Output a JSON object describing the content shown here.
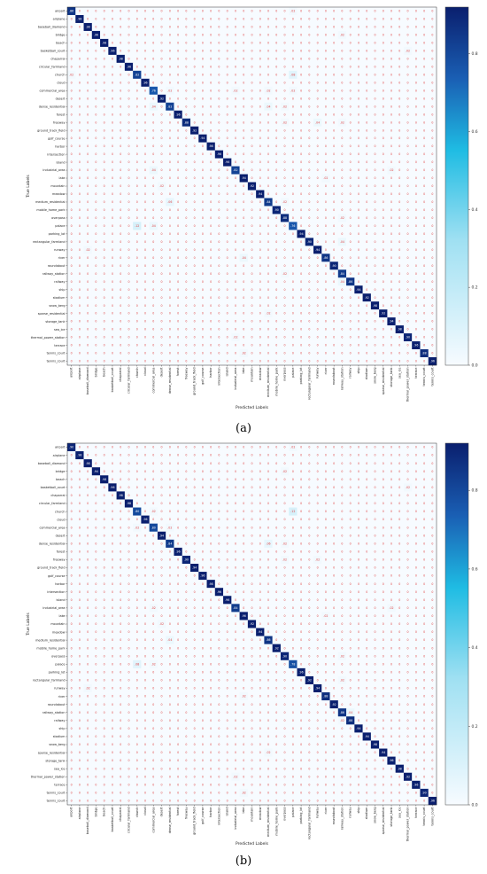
{
  "colors": {
    "low": "#f7fbff",
    "mid": "#1fbce3",
    "high": "#0a1f6e",
    "offdiag_text": "#e04040",
    "diag_text": "#ffffff"
  },
  "chart_data": [
    {
      "type": "heatmap",
      "caption": "(a)",
      "xlabel": "Predicted Labels",
      "ylabel": "True Labels",
      "labels": [
        "airport",
        "airplane",
        "baseball_diamond",
        "bridge",
        "beach",
        "basketball_court",
        "chaparral",
        "circular_farmland",
        "church",
        "cloud",
        "commercial_area",
        "desert",
        "dense_residential",
        "forest",
        "freeway",
        "ground_track_field",
        "golf_course",
        "harbor",
        "intersection",
        "island",
        "industrial_area",
        "lake",
        "mountain",
        "meadow",
        "medium_residential",
        "mobile_home_park",
        "overpass",
        "palace",
        "parking_lot",
        "rectangular_farmland",
        "runway",
        "river",
        "roundabout",
        "railway_station",
        "railway",
        "ship",
        "stadium",
        "snow_berg",
        "sparse_residential",
        "storage_tank",
        "sea_ice",
        "thermal_power_station",
        "terrace",
        "tennis_court",
        "tennis_court"
      ],
      "diagonal": [
        0.86,
        0.98,
        0.98,
        0.96,
        0.98,
        0.96,
        0.98,
        0.96,
        0.82,
        0.96,
        0.76,
        0.92,
        0.82,
        0.96,
        0.88,
        0.92,
        0.94,
        0.98,
        0.96,
        0.96,
        0.82,
        0.94,
        0.92,
        0.94,
        0.84,
        0.9,
        0.88,
        0.76,
        0.94,
        0.9,
        0.94,
        0.86,
        0.9,
        0.84,
        0.86,
        0.94,
        0.92,
        0.98,
        0.92,
        0.94,
        0.98,
        0.9,
        0.96,
        0.88,
        0.96
      ],
      "off_diagonal": [
        {
          "row": 0,
          "col": 27,
          "value": 0.02
        },
        {
          "row": 3,
          "col": 33,
          "value": 0.02
        },
        {
          "row": 5,
          "col": 41,
          "value": 0.02
        },
        {
          "row": 8,
          "col": 27,
          "value": 0.08
        },
        {
          "row": 8,
          "col": 0,
          "value": 0.02
        },
        {
          "row": 10,
          "col": 12,
          "value": 0.02
        },
        {
          "row": 10,
          "col": 20,
          "value": 0.02
        },
        {
          "row": 10,
          "col": 24,
          "value": 0.02
        },
        {
          "row": 10,
          "col": 27,
          "value": 0.02
        },
        {
          "row": 12,
          "col": 10,
          "value": 0.04
        },
        {
          "row": 12,
          "col": 24,
          "value": 0.04
        },
        {
          "row": 12,
          "col": 26,
          "value": 0.02
        },
        {
          "row": 14,
          "col": 26,
          "value": 0.02
        },
        {
          "row": 14,
          "col": 30,
          "value": 0.04
        },
        {
          "row": 14,
          "col": 33,
          "value": 0.02
        },
        {
          "row": 20,
          "col": 10,
          "value": 0.04
        },
        {
          "row": 20,
          "col": 39,
          "value": 0.02
        },
        {
          "row": 21,
          "col": 31,
          "value": 0.02
        },
        {
          "row": 22,
          "col": 11,
          "value": 0.02
        },
        {
          "row": 24,
          "col": 12,
          "value": 0.06
        },
        {
          "row": 24,
          "col": 26,
          "value": 0.02
        },
        {
          "row": 26,
          "col": 33,
          "value": 0.02
        },
        {
          "row": 27,
          "col": 8,
          "value": 0.12
        },
        {
          "row": 27,
          "col": 10,
          "value": 0.04
        },
        {
          "row": 29,
          "col": 33,
          "value": 0.04
        },
        {
          "row": 30,
          "col": 2,
          "value": 0.02
        },
        {
          "row": 31,
          "col": 21,
          "value": 0.04
        },
        {
          "row": 33,
          "col": 26,
          "value": 0.02
        },
        {
          "row": 34,
          "col": 33,
          "value": 0.04
        },
        {
          "row": 38,
          "col": 24,
          "value": 0.02
        },
        {
          "row": 41,
          "col": 20,
          "value": 0.02
        },
        {
          "row": 43,
          "col": 21,
          "value": 0.02
        }
      ],
      "colorbar_ticks": [
        "0.0",
        "0.2",
        "0.4",
        "0.6",
        "0.8"
      ],
      "vmin": 0,
      "vmax": 0.92
    },
    {
      "type": "heatmap",
      "caption": "(b)",
      "xlabel": "Predicted Labels",
      "ylabel": "True Labels",
      "labels": [
        "airport",
        "airplane",
        "baseball_diamond",
        "bridge",
        "beach",
        "basketball_court",
        "chaparral",
        "circular_farmland",
        "church",
        "cloud",
        "commercial_area",
        "desert",
        "dense_residential",
        "forest",
        "freeway",
        "ground_track_field",
        "golf_course",
        "harbor",
        "intersection",
        "island",
        "industrial_area",
        "lake",
        "mountain",
        "meadow",
        "medium_residential",
        "mobile_home_park",
        "overpass",
        "palace",
        "parking_lot",
        "rectangular_farmland",
        "runway",
        "river",
        "roundabout",
        "railway_station",
        "railway",
        "ship",
        "stadium",
        "snow_berg",
        "sparse_residential",
        "storage_tank",
        "sea_ice",
        "thermal_power_station",
        "terrace",
        "tennis_court",
        "tennis_court"
      ],
      "diagonal": [
        0.9,
        0.98,
        0.98,
        0.94,
        0.98,
        0.96,
        0.98,
        0.98,
        0.8,
        0.96,
        0.8,
        0.94,
        0.84,
        0.96,
        0.9,
        0.94,
        0.96,
        0.98,
        0.96,
        0.96,
        0.84,
        0.96,
        0.92,
        0.94,
        0.86,
        0.92,
        0.9,
        0.78,
        0.96,
        0.92,
        0.94,
        0.88,
        0.92,
        0.86,
        0.88,
        0.94,
        0.94,
        0.98,
        0.94,
        0.96,
        0.98,
        0.92,
        0.96,
        0.9,
        0.96
      ],
      "off_diagonal": [
        {
          "row": 0,
          "col": 27,
          "value": 0.02
        },
        {
          "row": 3,
          "col": 26,
          "value": 0.02
        },
        {
          "row": 5,
          "col": 41,
          "value": 0.02
        },
        {
          "row": 8,
          "col": 27,
          "value": 0.12
        },
        {
          "row": 8,
          "col": 10,
          "value": 0.02
        },
        {
          "row": 10,
          "col": 8,
          "value": 0.02
        },
        {
          "row": 10,
          "col": 12,
          "value": 0.02
        },
        {
          "row": 12,
          "col": 24,
          "value": 0.06
        },
        {
          "row": 12,
          "col": 26,
          "value": 0.02
        },
        {
          "row": 14,
          "col": 26,
          "value": 0.02
        },
        {
          "row": 14,
          "col": 30,
          "value": 0.02
        },
        {
          "row": 20,
          "col": 10,
          "value": 0.02
        },
        {
          "row": 20,
          "col": 39,
          "value": 0.02
        },
        {
          "row": 21,
          "col": 31,
          "value": 0.02
        },
        {
          "row": 22,
          "col": 11,
          "value": 0.02
        },
        {
          "row": 24,
          "col": 12,
          "value": 0.04
        },
        {
          "row": 26,
          "col": 33,
          "value": 0.02
        },
        {
          "row": 27,
          "col": 8,
          "value": 0.08
        },
        {
          "row": 27,
          "col": 10,
          "value": 0.02
        },
        {
          "row": 29,
          "col": 33,
          "value": 0.02
        },
        {
          "row": 30,
          "col": 2,
          "value": 0.02
        },
        {
          "row": 31,
          "col": 21,
          "value": 0.02
        },
        {
          "row": 33,
          "col": 34,
          "value": 0.04
        },
        {
          "row": 34,
          "col": 33,
          "value": 0.02
        },
        {
          "row": 38,
          "col": 24,
          "value": 0.02
        },
        {
          "row": 41,
          "col": 20,
          "value": 0.02
        },
        {
          "row": 43,
          "col": 21,
          "value": 0.02
        }
      ],
      "colorbar_ticks": [
        "0.0",
        "0.2",
        "0.4",
        "0.6",
        "0.8"
      ],
      "vmin": 0,
      "vmax": 0.92
    }
  ]
}
